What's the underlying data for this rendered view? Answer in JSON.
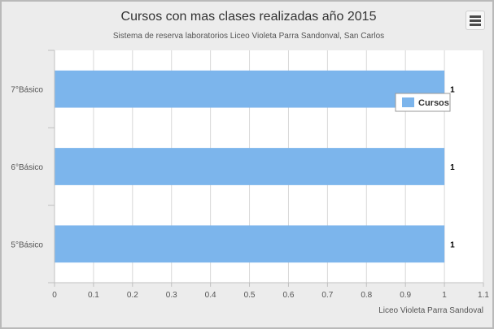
{
  "chart_data": {
    "type": "bar",
    "orientation": "horizontal",
    "title": "Cursos con mas clases realizadas año 2015",
    "subtitle": "Sistema de reserva laboratorios Liceo Violeta Parra Sandonval, San Carlos",
    "categories": [
      "7°Básico",
      "6°Básico",
      "5°Básico"
    ],
    "series": [
      {
        "name": "Cursos",
        "values": [
          1,
          1,
          1
        ],
        "color": "#7cb5ec"
      }
    ],
    "xlabel": "Liceo Violeta Parra Sandoval",
    "xlim": [
      0,
      1.1
    ],
    "x_ticks": [
      "0",
      "0.1",
      "0.2",
      "0.3",
      "0.4",
      "0.5",
      "0.6",
      "0.7",
      "0.8",
      "0.9",
      "1",
      "1.1"
    ],
    "grid": true,
    "data_labels": true,
    "legend_position": "top-right"
  },
  "menu": {
    "icon": "hamburger-menu-icon"
  }
}
